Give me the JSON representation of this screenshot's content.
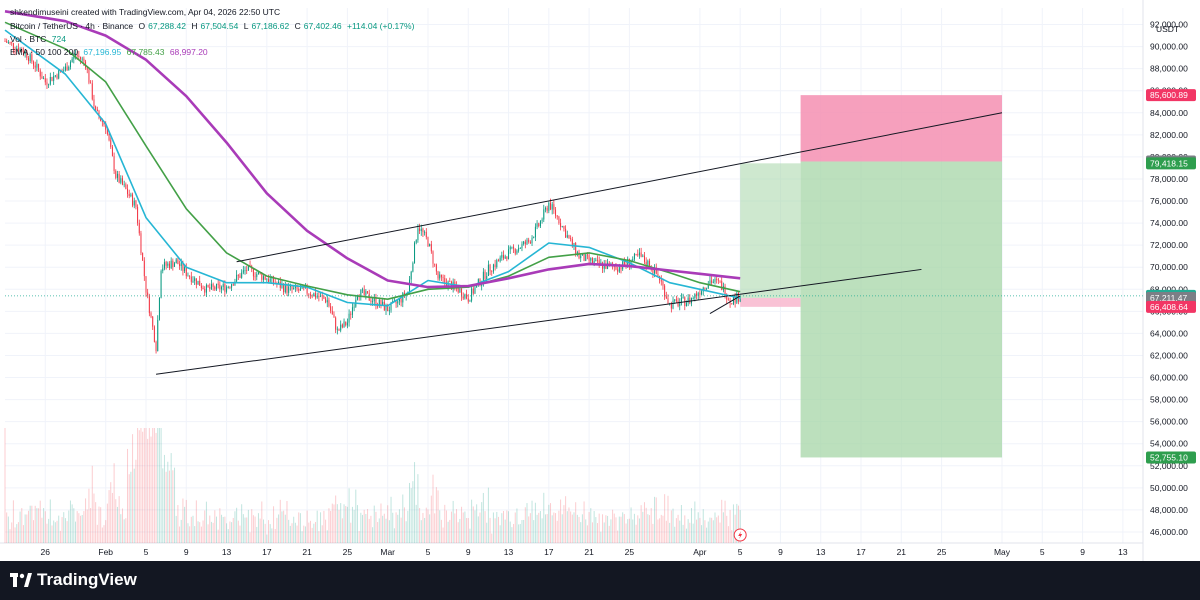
{
  "watermark": "shkendimuseini created with TradingView.com, Apr 04, 2026 22:50 UTC",
  "symbol": {
    "title": "Bitcoin / TetherUS · 4h · Binance",
    "open_label": "O",
    "open": "67,288.42",
    "high_label": "H",
    "high": "67,504.54",
    "low_label": "L",
    "low": "67,186.62",
    "close_label": "C",
    "close": "67,402.46",
    "change": "+114.04 (+0.17%)"
  },
  "volume": {
    "label": "Vol · BTC",
    "value": "724"
  },
  "ema": {
    "label": "EMA · 50 100 200",
    "v50": "67,196.95",
    "v100": "67,785.43",
    "v200": "68,997.20"
  },
  "currency": "USDT",
  "footer": {
    "brand": "TradingView"
  },
  "colors": {
    "up": "#089981",
    "down": "#f23645",
    "ema50": "#26b6d4",
    "ema100": "#43a047",
    "ema200": "#a93bb8",
    "stop_zone": "#f48fb1",
    "target_zone": "#a5d6a7",
    "entry_zone": "#f8bbd0"
  },
  "price_labels": [
    {
      "value": 85600.89,
      "text": "85,600.89",
      "bg": "#f23665"
    },
    {
      "value": 79585.77,
      "text": "79,585.77",
      "bg": "#7b7f86"
    },
    {
      "value": 79418.15,
      "text": "79,418.15",
      "bg": "#2e9e4e"
    },
    {
      "value": 67402.46,
      "text": "67,402.46",
      "bg": "#22ab94"
    },
    {
      "value": 67211.47,
      "text": "67,211.47",
      "bg": "#7b7f86"
    },
    {
      "value": 66408.64,
      "text": "66,408.64",
      "bg": "#f23665"
    },
    {
      "value": 52755.1,
      "text": "52,755.10",
      "bg": "#2e9e4e"
    }
  ],
  "chart_data": {
    "type": "candlestick",
    "interval": "4h",
    "y_axis": {
      "ticks": [
        46000,
        48000,
        50000,
        52000,
        54000,
        56000,
        58000,
        60000,
        62000,
        64000,
        66000,
        68000,
        70000,
        72000,
        74000,
        76000,
        78000,
        80000,
        82000,
        84000,
        86000,
        88000,
        90000,
        92000
      ],
      "tick_labels": [
        "46,000.00",
        "48,000.00",
        "50,000.00",
        "52,000.00",
        "54,000.00",
        "56,000.00",
        "58,000.00",
        "60,000.00",
        "62,000.00",
        "64,000.00",
        "66,000.00",
        "68,000.00",
        "70,000.00",
        "72,000.00",
        "74,000.00",
        "76,000.00",
        "78,000.00",
        "80,000.00",
        "82,000.00",
        "84,000.00",
        "86,000.00",
        "88,000.00",
        "90,000.00",
        "92,000.00"
      ],
      "range": [
        45000,
        93500
      ]
    },
    "x_axis": {
      "ticks": [
        "2026-01-26",
        "2026-02-01",
        "2026-02-05",
        "2026-02-09",
        "2026-02-13",
        "2026-02-17",
        "2026-02-21",
        "2026-02-25",
        "2026-03-01",
        "2026-03-05",
        "2026-03-09",
        "2026-03-13",
        "2026-03-17",
        "2026-03-21",
        "2026-03-25",
        "2026-04-01",
        "2026-04-05",
        "2026-04-09",
        "2026-04-13",
        "2026-04-17",
        "2026-04-21",
        "2026-04-25",
        "2026-05-01",
        "2026-05-05",
        "2026-05-09",
        "2026-05-13"
      ],
      "tick_labels": [
        "26",
        "Feb",
        "5",
        "9",
        "13",
        "17",
        "21",
        "25",
        "Mar",
        "5",
        "9",
        "13",
        "17",
        "21",
        "25",
        "Apr",
        "5",
        "9",
        "13",
        "17",
        "21",
        "25",
        "May",
        "5",
        "9",
        "13"
      ],
      "range": [
        "2026-01-22",
        "2026-05-15"
      ]
    },
    "price_path": [
      [
        "2026-01-22",
        90500
      ],
      [
        "2026-01-24",
        89500
      ],
      [
        "2026-01-25",
        88300
      ],
      [
        "2026-01-26",
        86800
      ],
      [
        "2026-01-28",
        88000
      ],
      [
        "2026-01-29",
        89300
      ],
      [
        "2026-01-30",
        88500
      ],
      [
        "2026-01-31",
        84000
      ],
      [
        "2026-02-01",
        82800
      ],
      [
        "2026-02-02",
        78300
      ],
      [
        "2026-02-03",
        77000
      ],
      [
        "2026-02-04",
        75500
      ],
      [
        "2026-02-05",
        68000
      ],
      [
        "2026-02-06",
        62800
      ],
      [
        "2026-02-06T12",
        70000
      ],
      [
        "2026-02-08",
        70500
      ],
      [
        "2026-02-09",
        69500
      ],
      [
        "2026-02-11",
        68000
      ],
      [
        "2026-02-13",
        68200
      ],
      [
        "2026-02-15",
        69800
      ],
      [
        "2026-02-17",
        69000
      ],
      [
        "2026-02-19",
        68000
      ],
      [
        "2026-02-21",
        67800
      ],
      [
        "2026-02-23",
        67000
      ],
      [
        "2026-02-24",
        64200
      ],
      [
        "2026-02-25",
        65000
      ],
      [
        "2026-02-26",
        67800
      ],
      [
        "2026-02-28",
        66800
      ],
      [
        "2026-03-01",
        66200
      ],
      [
        "2026-03-02",
        66800
      ],
      [
        "2026-03-03",
        67800
      ],
      [
        "2026-03-04",
        73800
      ],
      [
        "2026-03-05",
        72300
      ],
      [
        "2026-03-06",
        69000
      ],
      [
        "2026-03-08",
        68000
      ],
      [
        "2026-03-09",
        67200
      ],
      [
        "2026-03-11",
        69800
      ],
      [
        "2026-03-13",
        71300
      ],
      [
        "2026-03-15",
        72300
      ],
      [
        "2026-03-16",
        73800
      ],
      [
        "2026-03-17",
        75800
      ],
      [
        "2026-03-18",
        74300
      ],
      [
        "2026-03-19",
        72500
      ],
      [
        "2026-03-20",
        71000
      ],
      [
        "2026-03-22",
        70200
      ],
      [
        "2026-03-24",
        70000
      ],
      [
        "2026-03-26",
        71000
      ],
      [
        "2026-03-27",
        70200
      ],
      [
        "2026-03-28",
        69000
      ],
      [
        "2026-03-29",
        66600
      ],
      [
        "2026-03-31",
        67000
      ],
      [
        "2026-04-02",
        68800
      ],
      [
        "2026-04-03",
        68500
      ],
      [
        "2026-04-04",
        67000
      ],
      [
        "2026-04-05",
        67402
      ]
    ],
    "ema_series": [
      {
        "name": "EMA 50",
        "color": "#26b6d4",
        "points": [
          [
            "2026-01-22",
            91500
          ],
          [
            "2026-01-28",
            87500
          ],
          [
            "2026-02-01",
            83000
          ],
          [
            "2026-02-05",
            74500
          ],
          [
            "2026-02-09",
            70000
          ],
          [
            "2026-02-13",
            68600
          ],
          [
            "2026-02-17",
            68600
          ],
          [
            "2026-02-21",
            68200
          ],
          [
            "2026-02-25",
            66800
          ],
          [
            "2026-03-01",
            66500
          ],
          [
            "2026-03-05",
            68800
          ],
          [
            "2026-03-09",
            68200
          ],
          [
            "2026-03-13",
            69600
          ],
          [
            "2026-03-17",
            72200
          ],
          [
            "2026-03-21",
            71800
          ],
          [
            "2026-03-25",
            70400
          ],
          [
            "2026-03-29",
            68600
          ],
          [
            "2026-04-01",
            68000
          ],
          [
            "2026-04-05",
            67197
          ]
        ]
      },
      {
        "name": "EMA 100",
        "color": "#43a047",
        "points": [
          [
            "2026-01-22",
            92200
          ],
          [
            "2026-01-28",
            89800
          ],
          [
            "2026-02-01",
            86800
          ],
          [
            "2026-02-05",
            81000
          ],
          [
            "2026-02-09",
            75300
          ],
          [
            "2026-02-13",
            71300
          ],
          [
            "2026-02-17",
            69200
          ],
          [
            "2026-02-21",
            68300
          ],
          [
            "2026-02-25",
            67500
          ],
          [
            "2026-03-01",
            67100
          ],
          [
            "2026-03-05",
            68000
          ],
          [
            "2026-03-09",
            68200
          ],
          [
            "2026-03-13",
            69200
          ],
          [
            "2026-03-17",
            70900
          ],
          [
            "2026-03-21",
            71300
          ],
          [
            "2026-03-25",
            70600
          ],
          [
            "2026-03-29",
            69500
          ],
          [
            "2026-04-01",
            68600
          ],
          [
            "2026-04-05",
            67785
          ]
        ]
      },
      {
        "name": "EMA 200",
        "color": "#a93bb8",
        "points": [
          [
            "2026-01-22",
            93200
          ],
          [
            "2026-01-28",
            92300
          ],
          [
            "2026-02-01",
            91000
          ],
          [
            "2026-02-05",
            88800
          ],
          [
            "2026-02-09",
            85500
          ],
          [
            "2026-02-13",
            81300
          ],
          [
            "2026-02-17",
            76700
          ],
          [
            "2026-02-21",
            73300
          ],
          [
            "2026-02-25",
            70800
          ],
          [
            "2026-03-01",
            68800
          ],
          [
            "2026-03-05",
            68200
          ],
          [
            "2026-03-09",
            68300
          ],
          [
            "2026-03-13",
            69000
          ],
          [
            "2026-03-17",
            69800
          ],
          [
            "2026-03-21",
            70300
          ],
          [
            "2026-03-25",
            70100
          ],
          [
            "2026-03-29",
            69700
          ],
          [
            "2026-04-01",
            69400
          ],
          [
            "2026-04-05",
            68997
          ]
        ]
      }
    ],
    "trend_lines": [
      {
        "name": "channel-upper",
        "from": [
          "2026-02-14",
          70500
        ],
        "to": [
          "2026-05-01",
          84000
        ]
      },
      {
        "name": "channel-lower",
        "from": [
          "2026-02-06",
          60300
        ],
        "to": [
          "2026-04-23",
          69800
        ]
      },
      {
        "name": "wedge-support",
        "from": [
          "2026-04-02",
          65800
        ],
        "to": [
          "2026-04-05",
          67400
        ]
      }
    ],
    "positions": [
      {
        "type": "long",
        "from": "2026-04-05",
        "to": "2026-04-11",
        "entry": 67211.47,
        "target": 79418.15,
        "stop": 66408.64
      },
      {
        "type": "short",
        "from": "2026-04-11",
        "to": "2026-05-01",
        "entry": 79585.77,
        "target": 52755.1,
        "stop": 85600.89
      }
    ],
    "current_price": 67402.46
  }
}
